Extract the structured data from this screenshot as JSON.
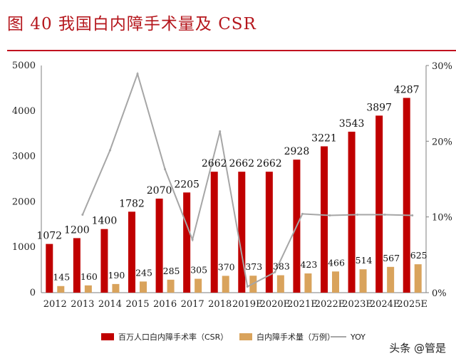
{
  "title": "图 40 我国白内障手术量及 CSR",
  "watermark": "头条 @管是",
  "colors": {
    "csr": "#c00000",
    "volume": "#d9a35c",
    "yoy": "#a6a6a6",
    "accent": "#c1121f"
  },
  "chart_data": {
    "type": "bar",
    "categories": [
      "2012",
      "2013",
      "2014",
      "2015",
      "2016",
      "2017",
      "2018",
      "2019E",
      "2020E",
      "2021E",
      "2022E",
      "2023E",
      "2024E",
      "2025E"
    ],
    "series": [
      {
        "name": "百万人口白内障手术率（CSR）",
        "type": "bar",
        "axis": "left",
        "values": [
          1072,
          1200,
          1400,
          1782,
          2070,
          2205,
          2662,
          2662,
          2662,
          2928,
          3221,
          3543,
          3897,
          4287
        ]
      },
      {
        "name": "白内障手术量（万例）",
        "type": "bar",
        "axis": "left",
        "values": [
          145,
          160,
          190,
          245,
          285,
          305,
          370,
          373,
          383,
          423,
          466,
          514,
          567,
          625
        ]
      },
      {
        "name": "YOY",
        "type": "line",
        "axis": "right",
        "values": [
          null,
          10.3,
          18.8,
          28.9,
          16.3,
          7.0,
          21.3,
          0.8,
          2.7,
          10.4,
          10.2,
          10.3,
          10.3,
          10.2
        ]
      }
    ],
    "y_left": {
      "min": 0,
      "max": 5000,
      "ticks": [
        "0",
        "1000",
        "2000",
        "3000",
        "4000",
        "5000"
      ]
    },
    "y_right": {
      "min": 0,
      "max": 30,
      "ticks": [
        "0%",
        "10%",
        "20%",
        "30%"
      ]
    },
    "legend_position": "bottom",
    "grid": false
  }
}
